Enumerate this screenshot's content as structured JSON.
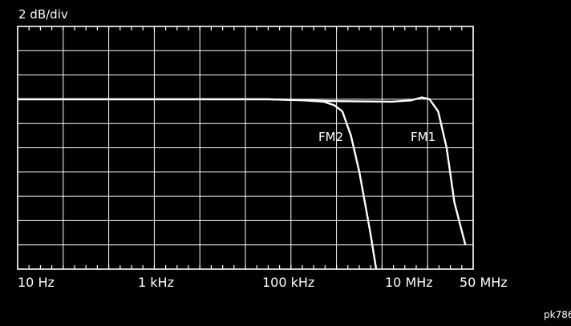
{
  "scale_label": "2 dB/div",
  "figure_id": "pk786",
  "chart_data": {
    "type": "line",
    "title": "",
    "xlabel": "",
    "ylabel": "",
    "x_scale": "log",
    "x_ticks": [
      "10 Hz",
      "1 kHz",
      "100 kHz",
      "10 MHz",
      "50 MHz"
    ],
    "x_tick_values_hz": [
      10,
      1000,
      100000,
      10000000,
      50000000
    ],
    "xlim_hz": [
      10,
      200000000
    ],
    "y_unit": "dB",
    "y_divisions": 10,
    "ylim": [
      -20,
      0
    ],
    "grid": true,
    "legend": "none",
    "series": [
      {
        "name": "FM2",
        "x_hz": [
          10,
          1000,
          100000,
          300000,
          800000,
          1200000,
          1600000,
          2200000,
          3000000,
          4500000,
          6000000
        ],
        "y_db": [
          -6.0,
          -6.0,
          -6.0,
          -6.05,
          -6.2,
          -6.5,
          -7.0,
          -9.0,
          -12.0,
          -17.0,
          -21.0
        ]
      },
      {
        "name": "FM1",
        "x_hz": [
          10,
          1000,
          100000,
          1000000,
          10000000,
          20000000,
          30000000,
          40000000,
          55000000,
          75000000,
          100000000,
          150000000
        ],
        "y_db": [
          -6.0,
          -6.0,
          -6.0,
          -6.15,
          -6.2,
          -6.1,
          -5.85,
          -6.0,
          -7.0,
          -10.0,
          -14.5,
          -18.0
        ]
      }
    ]
  }
}
